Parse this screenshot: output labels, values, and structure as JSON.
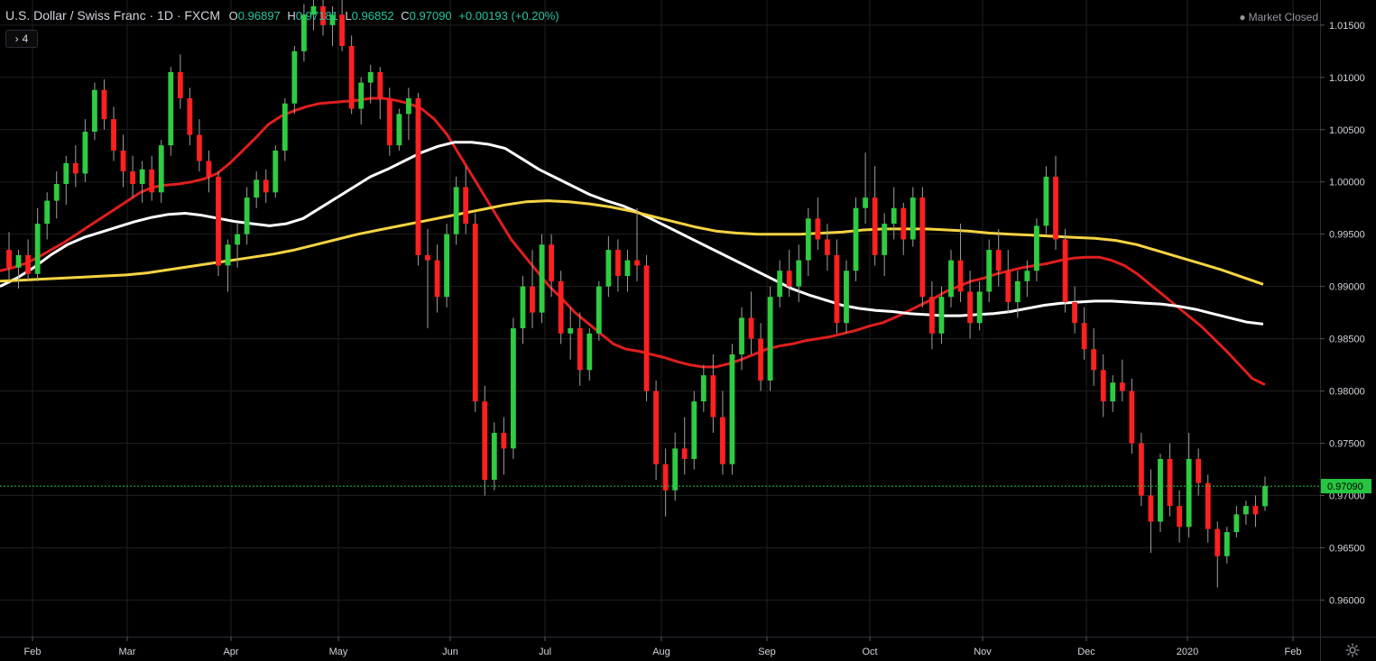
{
  "header": {
    "symbol": "U.S. Dollar / Swiss Franc · 1D · FXCM",
    "open_label": "O",
    "open": "0.96897",
    "high_label": "H",
    "high": "0.97181",
    "low_label": "L",
    "low": "0.96852",
    "close_label": "C",
    "close": "0.97090",
    "change": "+0.00193 (+0.20%)"
  },
  "indicators_toggle": {
    "count": "4",
    "icon": "chevron-right-icon"
  },
  "market_status": "Market Closed",
  "settings_icon": "gear-icon",
  "colors": {
    "background": "#000000",
    "grid": "#1f1f1f",
    "up": "#2ecc40",
    "down": "#ff2020",
    "wick": "#9e9e9e",
    "ma_red": "#e01e1e",
    "ma_white": "#ffffff",
    "ma_yellow": "#f5d442",
    "last_price": "#26c640",
    "axis_text": "#d1d4dc"
  },
  "chart_data": {
    "type": "candlestick",
    "y_axis_ticks": [
      "1.01500",
      "1.01000",
      "1.00500",
      "1.00000",
      "0.99500",
      "0.99000",
      "0.98500",
      "0.98000",
      "0.97500",
      "0.97000",
      "0.96500",
      "0.96000"
    ],
    "ylim": [
      0.9565,
      1.0174
    ],
    "x_axis_ticks": [
      "Feb",
      "Mar",
      "Apr",
      "May",
      "Jun",
      "Jul",
      "Aug",
      "Sep",
      "Oct",
      "Nov",
      "Dec",
      "2020",
      "Feb"
    ],
    "last_price": 0.9709,
    "last_price_label": "0.97090",
    "candles": [
      [
        0.9935,
        0.9952,
        0.9905,
        0.9918
      ],
      [
        0.9918,
        0.9935,
        0.9898,
        0.993
      ],
      [
        0.993,
        0.9945,
        0.9905,
        0.9912
      ],
      [
        0.9912,
        0.9975,
        0.9905,
        0.996
      ],
      [
        0.996,
        0.999,
        0.9945,
        0.9982
      ],
      [
        0.9982,
        1.001,
        0.9965,
        0.9998
      ],
      [
        0.9998,
        1.0025,
        0.9978,
        1.0018
      ],
      [
        1.0018,
        1.0035,
        0.9995,
        1.0008
      ],
      [
        1.0008,
        1.006,
        1.0,
        1.0048
      ],
      [
        1.0048,
        1.0095,
        1.004,
        1.0088
      ],
      [
        1.0088,
        1.0098,
        1.005,
        1.006
      ],
      [
        1.006,
        1.0072,
        1.002,
        1.003
      ],
      [
        1.003,
        1.0045,
        0.9995,
        1.001
      ],
      [
        1.001,
        1.0025,
        0.9985,
        0.9998
      ],
      [
        0.9998,
        1.002,
        0.998,
        1.0012
      ],
      [
        1.0012,
        1.0025,
        0.9982,
        0.999
      ],
      [
        0.999,
        1.004,
        0.998,
        1.0035
      ],
      [
        1.0035,
        1.011,
        1.0025,
        1.0105
      ],
      [
        1.0105,
        1.0122,
        1.007,
        1.008
      ],
      [
        1.008,
        1.009,
        1.0035,
        1.0045
      ],
      [
        1.0045,
        1.006,
        1.001,
        1.002
      ],
      [
        1.002,
        1.003,
        0.999,
        1.0005
      ],
      [
        1.0005,
        1.001,
        0.991,
        0.992
      ],
      [
        0.992,
        0.9945,
        0.9895,
        0.994
      ],
      [
        0.994,
        0.996,
        0.9918,
        0.995
      ],
      [
        0.995,
        0.9995,
        0.994,
        0.9985
      ],
      [
        0.9985,
        1.001,
        0.9975,
        1.0002
      ],
      [
        1.0002,
        1.0012,
        0.998,
        0.999
      ],
      [
        0.999,
        1.0035,
        0.9985,
        1.003
      ],
      [
        1.003,
        1.008,
        1.002,
        1.0075
      ],
      [
        1.0075,
        1.013,
        1.0065,
        1.0125
      ],
      [
        1.0125,
        1.017,
        1.0115,
        1.016
      ],
      [
        1.016,
        1.018,
        1.0145,
        1.0168
      ],
      [
        1.0168,
        1.018,
        1.014,
        1.015
      ],
      [
        1.015,
        1.0168,
        1.013,
        1.016
      ],
      [
        1.016,
        1.0175,
        1.0125,
        1.013
      ],
      [
        1.013,
        1.014,
        1.0065,
        1.007
      ],
      [
        1.007,
        1.01,
        1.0055,
        1.0095
      ],
      [
        1.0095,
        1.0112,
        1.0075,
        1.0105
      ],
      [
        1.0105,
        1.011,
        1.006,
        1.008
      ],
      [
        1.008,
        1.009,
        1.0025,
        1.0035
      ],
      [
        1.0035,
        1.007,
        1.003,
        1.0065
      ],
      [
        1.0065,
        1.009,
        1.004,
        1.008
      ],
      [
        1.008,
        1.0085,
        0.992,
        0.993
      ],
      [
        0.993,
        0.9955,
        0.986,
        0.9925
      ],
      [
        0.9925,
        0.994,
        0.9875,
        0.989
      ],
      [
        0.989,
        0.996,
        0.988,
        0.995
      ],
      [
        0.995,
        1.0005,
        0.994,
        0.9995
      ],
      [
        0.9995,
        1.0015,
        0.995,
        0.996
      ],
      [
        0.996,
        0.997,
        0.978,
        0.979
      ],
      [
        0.979,
        0.9805,
        0.97,
        0.9715
      ],
      [
        0.9715,
        0.977,
        0.9705,
        0.976
      ],
      [
        0.976,
        0.9775,
        0.972,
        0.9745
      ],
      [
        0.9745,
        0.987,
        0.9735,
        0.986
      ],
      [
        0.986,
        0.991,
        0.9845,
        0.99
      ],
      [
        0.99,
        0.9935,
        0.986,
        0.9875
      ],
      [
        0.9875,
        0.995,
        0.9865,
        0.994
      ],
      [
        0.994,
        0.995,
        0.989,
        0.9905
      ],
      [
        0.9905,
        0.9915,
        0.9845,
        0.9855
      ],
      [
        0.9855,
        0.988,
        0.983,
        0.986
      ],
      [
        0.986,
        0.9875,
        0.9805,
        0.982
      ],
      [
        0.982,
        0.986,
        0.981,
        0.9855
      ],
      [
        0.9855,
        0.9905,
        0.9848,
        0.99
      ],
      [
        0.99,
        0.9948,
        0.989,
        0.9935
      ],
      [
        0.9935,
        0.9945,
        0.9895,
        0.991
      ],
      [
        0.991,
        0.9935,
        0.9895,
        0.9925
      ],
      [
        0.9925,
        0.9975,
        0.9905,
        0.992
      ],
      [
        0.992,
        0.993,
        0.979,
        0.98
      ],
      [
        0.98,
        0.981,
        0.9715,
        0.973
      ],
      [
        0.973,
        0.9745,
        0.968,
        0.9705
      ],
      [
        0.9705,
        0.976,
        0.9695,
        0.9745
      ],
      [
        0.9745,
        0.9775,
        0.972,
        0.9735
      ],
      [
        0.9735,
        0.98,
        0.9725,
        0.979
      ],
      [
        0.979,
        0.9825,
        0.978,
        0.9815
      ],
      [
        0.9815,
        0.9835,
        0.976,
        0.9775
      ],
      [
        0.9775,
        0.98,
        0.972,
        0.973
      ],
      [
        0.973,
        0.9845,
        0.972,
        0.9835
      ],
      [
        0.9835,
        0.988,
        0.982,
        0.987
      ],
      [
        0.987,
        0.9895,
        0.9835,
        0.985
      ],
      [
        0.985,
        0.9865,
        0.98,
        0.981
      ],
      [
        0.981,
        0.99,
        0.98,
        0.989
      ],
      [
        0.989,
        0.9925,
        0.988,
        0.9915
      ],
      [
        0.9915,
        0.9935,
        0.989,
        0.99
      ],
      [
        0.99,
        0.994,
        0.9885,
        0.9925
      ],
      [
        0.9925,
        0.9975,
        0.991,
        0.9965
      ],
      [
        0.9965,
        0.9985,
        0.9935,
        0.9945
      ],
      [
        0.9945,
        0.996,
        0.9915,
        0.993
      ],
      [
        0.993,
        0.9945,
        0.9855,
        0.9865
      ],
      [
        0.9865,
        0.9925,
        0.9855,
        0.9915
      ],
      [
        0.9915,
        0.9985,
        0.9905,
        0.9975
      ],
      [
        0.9975,
        1.0028,
        0.996,
        0.9985
      ],
      [
        0.9985,
        1.0015,
        0.992,
        0.993
      ],
      [
        0.993,
        0.997,
        0.991,
        0.996
      ],
      [
        0.996,
        0.9995,
        0.9945,
        0.9975
      ],
      [
        0.9975,
        0.998,
        0.993,
        0.9945
      ],
      [
        0.9945,
        0.9995,
        0.9938,
        0.9985
      ],
      [
        0.9985,
        0.9995,
        0.988,
        0.989
      ],
      [
        0.989,
        0.9905,
        0.984,
        0.9855
      ],
      [
        0.9855,
        0.99,
        0.9845,
        0.989
      ],
      [
        0.989,
        0.9935,
        0.988,
        0.9925
      ],
      [
        0.9925,
        0.996,
        0.9885,
        0.9895
      ],
      [
        0.9895,
        0.9915,
        0.985,
        0.9865
      ],
      [
        0.9865,
        0.9905,
        0.9858,
        0.9895
      ],
      [
        0.9895,
        0.9945,
        0.9885,
        0.9935
      ],
      [
        0.9935,
        0.9955,
        0.99,
        0.9915
      ],
      [
        0.9915,
        0.9935,
        0.9875,
        0.9885
      ],
      [
        0.9885,
        0.9915,
        0.987,
        0.9905
      ],
      [
        0.9905,
        0.9925,
        0.989,
        0.9915
      ],
      [
        0.9915,
        0.9965,
        0.9905,
        0.9958
      ],
      [
        0.9958,
        1.0015,
        0.995,
        1.0005
      ],
      [
        1.0005,
        1.0025,
        0.9935,
        0.9945
      ],
      [
        0.9945,
        0.9955,
        0.9875,
        0.9885
      ],
      [
        0.9885,
        0.99,
        0.9855,
        0.9865
      ],
      [
        0.9865,
        0.988,
        0.983,
        0.984
      ],
      [
        0.984,
        0.986,
        0.9805,
        0.982
      ],
      [
        0.982,
        0.9835,
        0.9775,
        0.979
      ],
      [
        0.979,
        0.9815,
        0.978,
        0.9808
      ],
      [
        0.9808,
        0.983,
        0.979,
        0.98
      ],
      [
        0.98,
        0.9812,
        0.974,
        0.975
      ],
      [
        0.975,
        0.976,
        0.969,
        0.97
      ],
      [
        0.97,
        0.9725,
        0.9645,
        0.9675
      ],
      [
        0.9675,
        0.974,
        0.9665,
        0.9735
      ],
      [
        0.9735,
        0.975,
        0.968,
        0.969
      ],
      [
        0.969,
        0.9705,
        0.9655,
        0.967
      ],
      [
        0.967,
        0.976,
        0.966,
        0.9735
      ],
      [
        0.9735,
        0.9745,
        0.97,
        0.9712
      ],
      [
        0.9712,
        0.972,
        0.9655,
        0.9668
      ],
      [
        0.9668,
        0.9675,
        0.9612,
        0.9642
      ],
      [
        0.9642,
        0.967,
        0.9635,
        0.9665
      ],
      [
        0.9665,
        0.969,
        0.966,
        0.9682
      ],
      [
        0.9682,
        0.9695,
        0.9672,
        0.969
      ],
      [
        0.969,
        0.97,
        0.967,
        0.9682
      ],
      [
        0.96897,
        0.97181,
        0.96852,
        0.9709
      ]
    ],
    "moving_averages": [
      {
        "color_key": "ma_red",
        "values": [
          0.9915,
          0.9918,
          0.9922,
          0.9928,
          0.9935,
          0.9942,
          0.995,
          0.9958,
          0.9966,
          0.9974,
          0.9982,
          0.999,
          0.9995,
          0.9997,
          0.9998,
          1.0,
          1.0003,
          1.0008,
          1.0018,
          1.003,
          1.0042,
          1.0055,
          1.0063,
          1.0068,
          1.0072,
          1.0075,
          1.0076,
          1.0077,
          1.0078,
          1.008,
          1.008,
          1.0078,
          1.0075,
          1.007,
          1.006,
          1.0045,
          1.0025,
          1.0005,
          0.9985,
          0.9965,
          0.9945,
          0.993,
          0.9915,
          0.99,
          0.9888,
          0.9875,
          0.9865,
          0.9855,
          0.9845,
          0.984,
          0.9838,
          0.9835,
          0.9832,
          0.9828,
          0.9825,
          0.9823,
          0.9823,
          0.9826,
          0.983,
          0.9835,
          0.984,
          0.9843,
          0.9845,
          0.9848,
          0.985,
          0.9852,
          0.9855,
          0.9858,
          0.9862,
          0.9865,
          0.987,
          0.9876,
          0.9882,
          0.9888,
          0.9895,
          0.99,
          0.9905,
          0.9908,
          0.9912,
          0.9915,
          0.9918,
          0.992,
          0.9922,
          0.9925,
          0.9927,
          0.9928,
          0.9928,
          0.9925,
          0.992,
          0.9912,
          0.9902,
          0.9892,
          0.9882,
          0.9872,
          0.9862,
          0.985,
          0.9838,
          0.9825,
          0.9812,
          0.9806
        ]
      },
      {
        "color_key": "ma_white",
        "values": [
          0.99,
          0.9908,
          0.9918,
          0.993,
          0.994,
          0.9947,
          0.9952,
          0.9957,
          0.9962,
          0.9966,
          0.9969,
          0.997,
          0.9968,
          0.9965,
          0.9962,
          0.996,
          0.9958,
          0.996,
          0.9965,
          0.9975,
          0.9985,
          0.9995,
          1.0005,
          1.0012,
          1.002,
          1.0028,
          1.0034,
          1.0038,
          1.0038,
          1.0036,
          1.0032,
          1.0022,
          1.0012,
          1.0004,
          0.9996,
          0.9988,
          0.9982,
          0.9977,
          0.997,
          0.9962,
          0.9954,
          0.9946,
          0.9938,
          0.993,
          0.9922,
          0.9914,
          0.9906,
          0.9898,
          0.9892,
          0.9887,
          0.9882,
          0.9879,
          0.9877,
          0.9876,
          0.9874,
          0.9873,
          0.9872,
          0.9872,
          0.9873,
          0.9874,
          0.9876,
          0.9879,
          0.9882,
          0.9884,
          0.9885,
          0.9886,
          0.9886,
          0.9885,
          0.9884,
          0.9883,
          0.9881,
          0.9878,
          0.9874,
          0.987,
          0.9866,
          0.9864
        ]
      },
      {
        "color_key": "ma_yellow",
        "values": [
          0.9905,
          0.9906,
          0.9907,
          0.9908,
          0.9909,
          0.991,
          0.9911,
          0.9913,
          0.9916,
          0.9919,
          0.9922,
          0.9925,
          0.9928,
          0.9931,
          0.9935,
          0.994,
          0.9945,
          0.995,
          0.9954,
          0.9958,
          0.9962,
          0.9966,
          0.997,
          0.9974,
          0.9978,
          0.9981,
          0.9982,
          0.9981,
          0.9979,
          0.9976,
          0.9972,
          0.9967,
          0.9962,
          0.9957,
          0.9953,
          0.9951,
          0.995,
          0.995,
          0.995,
          0.9951,
          0.9952,
          0.9954,
          0.9955,
          0.9955,
          0.9955,
          0.9954,
          0.9953,
          0.9951,
          0.995,
          0.9949,
          0.9948,
          0.9947,
          0.9946,
          0.9944,
          0.994,
          0.9934,
          0.9928,
          0.9922,
          0.9916,
          0.9909,
          0.9902
        ]
      }
    ]
  }
}
